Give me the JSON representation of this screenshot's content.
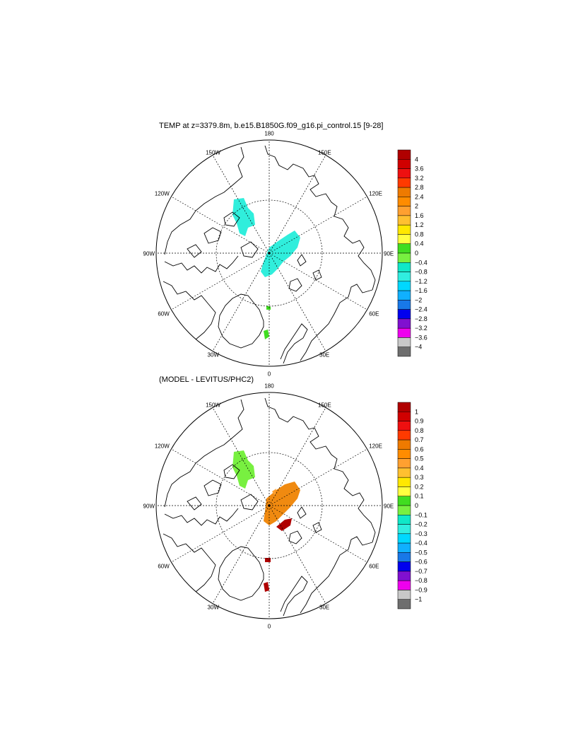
{
  "panels": [
    {
      "title": "TEMP at z=3379.8m, b.e15.B1850G.f09_g16.pi_control.15 [9-28]",
      "lon_labels": [
        "180",
        "150E",
        "120E",
        "90E",
        "60E",
        "30E",
        "0",
        "30W",
        "60W",
        "90W",
        "120W",
        "150W"
      ],
      "colorbar": {
        "labels": [
          "4",
          "3.6",
          "3.2",
          "2.8",
          "2.4",
          "2",
          "1.6",
          "1.2",
          "0.8",
          "0.4",
          "0",
          "−0.4",
          "−0.8",
          "−1.2",
          "−1.6",
          "−2",
          "−2.4",
          "−2.8",
          "−3.2",
          "−3.6",
          "−4"
        ],
        "colors": [
          "#b00000",
          "#d00000",
          "#ee1010",
          "#ff3a00",
          "#ee7a00",
          "#ff8c00",
          "#ffa030",
          "#ffc030",
          "#ffe800",
          "#ffff40",
          "#40dd20",
          "#78f040",
          "#10e8c8",
          "#30eee0",
          "#00d8ff",
          "#10b0ff",
          "#1878e8",
          "#0000ee",
          "#8010d0",
          "#ee00ee",
          "#c8c8c8",
          "#6e6e6e"
        ]
      },
      "field_color": "#30eedc"
    },
    {
      "title": "(MODEL - LEVITUS/PHC2)",
      "lon_labels": [
        "180",
        "150E",
        "120E",
        "90E",
        "60E",
        "30E",
        "0",
        "30W",
        "60W",
        "90W",
        "120W",
        "150W"
      ],
      "colorbar": {
        "labels": [
          "1",
          "0.9",
          "0.8",
          "0.7",
          "0.6",
          "0.5",
          "0.4",
          "0.3",
          "0.2",
          "0.1",
          "0",
          "−0.1",
          "−0.2",
          "−0.3",
          "−0.4",
          "−0.5",
          "−0.6",
          "−0.7",
          "−0.8",
          "−0.9",
          "−1"
        ],
        "colors": [
          "#b00000",
          "#d00000",
          "#ee1010",
          "#ff3a00",
          "#ee7a00",
          "#ff8c00",
          "#ffa030",
          "#ffc030",
          "#ffe800",
          "#ffff40",
          "#40dd20",
          "#78f040",
          "#10e8c8",
          "#30eee0",
          "#00d8ff",
          "#10b0ff",
          "#1878e8",
          "#0000ee",
          "#8010d0",
          "#ee00ee",
          "#c8c8c8",
          "#6e6e6e"
        ]
      },
      "field_color": "#f08a10"
    }
  ]
}
